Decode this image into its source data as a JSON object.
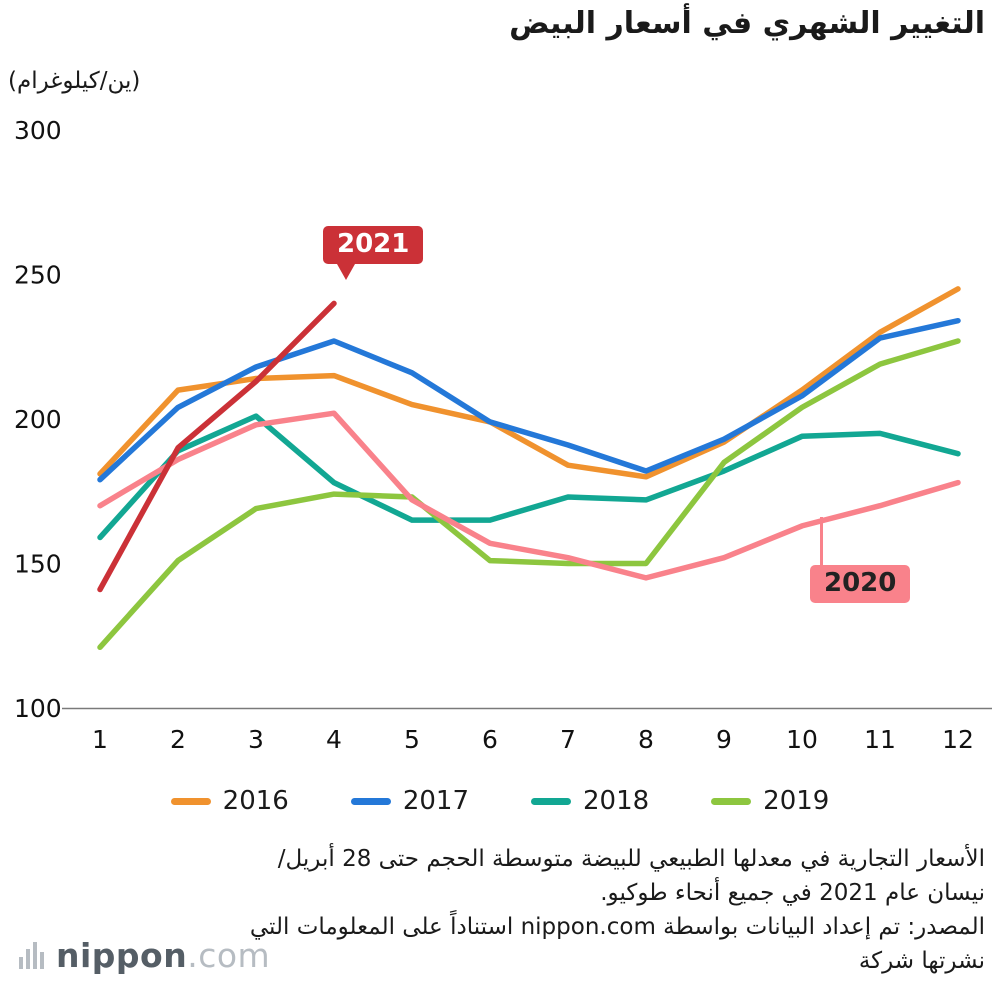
{
  "title": "التغيير الشهري في أسعار البيض",
  "unit_label": "(ين/كيلوغرام)",
  "annotations": {
    "label_2021": "2021",
    "label_2020": "2020",
    "color_2021": "#cb3137",
    "color_2020": "#f9828b"
  },
  "legend": [
    {
      "label": "2016",
      "color": "#f0922e"
    },
    {
      "label": "2017",
      "color": "#2478d8"
    },
    {
      "label": "2018",
      "color": "#12a793"
    },
    {
      "label": "2019",
      "color": "#8dc63f"
    }
  ],
  "footer": {
    "line1": "الأسعار التجارية في معدلها الطبيعي للبيضة متوسطة الحجم حتى 28 أبريل/",
    "line2": "نيسان عام 2021 في جميع أنحاء طوكيو.",
    "line3": "المصدر: تم إعداد البيانات بواسطة nippon.com استناداً على المعلومات التي",
    "line4": "نشرتها شركة"
  },
  "logo": {
    "name": "nippon",
    "suffix": ".com"
  },
  "chart_data": {
    "type": "line",
    "x": [
      1,
      2,
      3,
      4,
      5,
      6,
      7,
      8,
      9,
      10,
      11,
      12
    ],
    "xlabel": "",
    "ylabel": "(ين/كيلوغرام)",
    "ylim": [
      100,
      300
    ],
    "yticks": [
      100,
      150,
      200,
      250,
      300
    ],
    "grid": false,
    "legend_position": "bottom",
    "series": [
      {
        "name": "2016",
        "color": "#f0922e",
        "values": [
          181,
          210,
          214,
          215,
          205,
          199,
          184,
          180,
          192,
          210,
          230,
          245
        ]
      },
      {
        "name": "2017",
        "color": "#2478d8",
        "values": [
          179,
          204,
          218,
          227,
          216,
          199,
          191,
          182,
          193,
          208,
          228,
          234
        ]
      },
      {
        "name": "2018",
        "color": "#12a793",
        "values": [
          159,
          189,
          201,
          178,
          165,
          165,
          173,
          172,
          182,
          194,
          195,
          188
        ]
      },
      {
        "name": "2019",
        "color": "#8dc63f",
        "values": [
          121,
          151,
          169,
          174,
          173,
          151,
          150,
          150,
          185,
          204,
          219,
          227
        ]
      },
      {
        "name": "2020",
        "color": "#f9828b",
        "values": [
          170,
          186,
          198,
          202,
          172,
          157,
          152,
          145,
          152,
          163,
          170,
          178
        ]
      },
      {
        "name": "2021",
        "color": "#cb3137",
        "values": [
          141,
          190,
          213,
          240,
          null,
          null,
          null,
          null,
          null,
          null,
          null,
          null
        ]
      }
    ]
  }
}
